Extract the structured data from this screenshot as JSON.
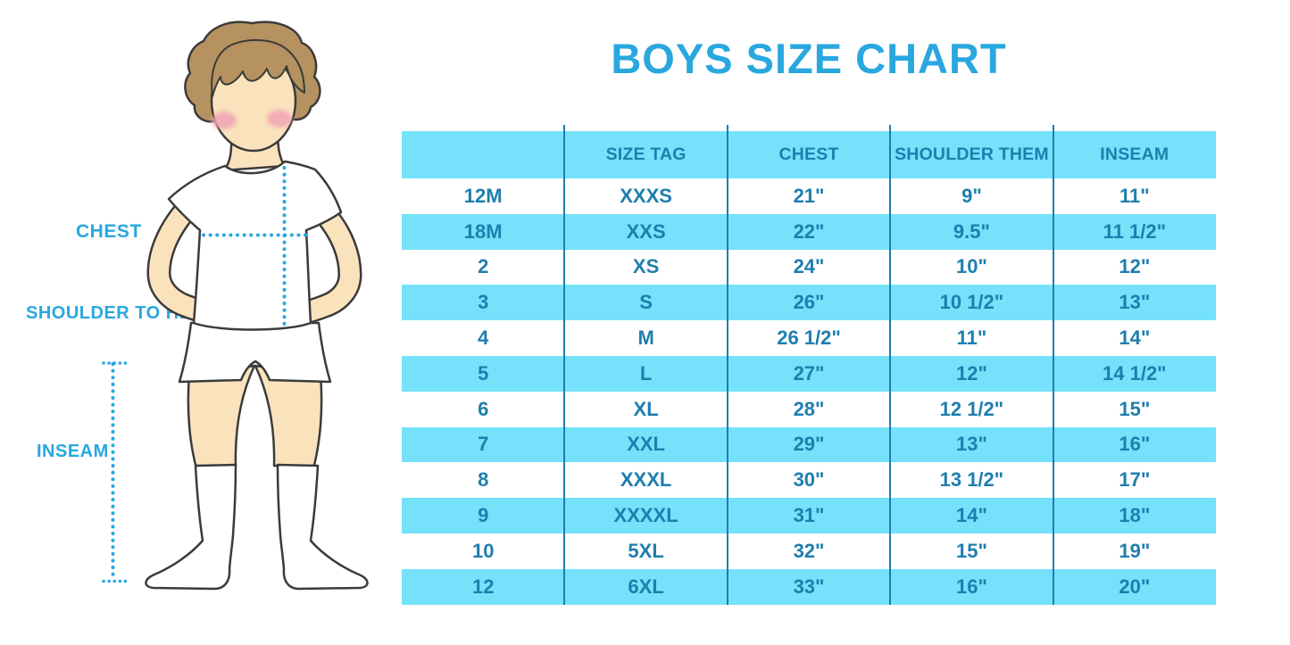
{
  "title": "BOYS SIZE CHART",
  "figure": {
    "chest_label": "CHEST",
    "shoulder_to_hem_label": "SHOULDER TO HEM",
    "inseam_label": "INSEAM"
  },
  "chart_data": {
    "type": "table",
    "title": "BOYS SIZE CHART",
    "columns": [
      "",
      "SIZE TAG",
      "CHEST",
      "SHOULDER THEM",
      "INSEAM"
    ],
    "rows": [
      [
        "12M",
        "XXXS",
        "21\"",
        "9\"",
        "11\""
      ],
      [
        "18M",
        "XXS",
        "22\"",
        "9.5\"",
        "11 1/2\""
      ],
      [
        "2",
        "XS",
        "24\"",
        "10\"",
        "12\""
      ],
      [
        "3",
        "S",
        "26\"",
        "10 1/2\"",
        "13\""
      ],
      [
        "4",
        "M",
        "26 1/2\"",
        "11\"",
        "14\""
      ],
      [
        "5",
        "L",
        "27\"",
        "12\"",
        "14 1/2\""
      ],
      [
        "6",
        "XL",
        "28\"",
        "12 1/2\"",
        "15\""
      ],
      [
        "7",
        "XXL",
        "29\"",
        "13\"",
        "16\""
      ],
      [
        "8",
        "XXXL",
        "30\"",
        "13 1/2\"",
        "17\""
      ],
      [
        "9",
        "XXXXL",
        "31\"",
        "14\"",
        "18\""
      ],
      [
        "10",
        "5XL",
        "32\"",
        "15\"",
        "19\""
      ],
      [
        "12",
        "6XL",
        "33\"",
        "16\"",
        "20\""
      ]
    ],
    "measurement_labels": [
      "CHEST",
      "SHOULDER TO HEM",
      "INSEAM"
    ],
    "layout": {
      "stripe_pattern": "header cyan, body rows alternate white/cyan starting white",
      "grid": "vertical column separators only"
    }
  },
  "colors": {
    "accent_blue": "#29A7DF",
    "band_cyan": "#75E1FA",
    "table_text": "#1E7EAE",
    "skin": "#FAE3BC",
    "hair": "#B5925F",
    "cheek": "#F1A4B6"
  }
}
